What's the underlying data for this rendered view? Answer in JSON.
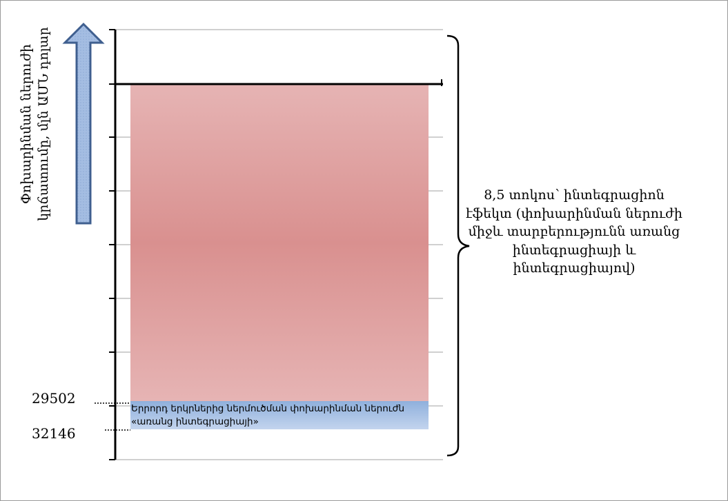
{
  "chart_data": {
    "type": "bar",
    "y_axis_label": "Փոխարինման ներուժի կրճատումը, մլն ԱՄՆ դոլար",
    "annotation": "8,5 տոկոս՝ ինտեգրացիոն էֆեկտ (փոխարինման ներուժի միջև տարբերությունն առանց ինտեգրացիայի և ինտեգրացիայով)",
    "values": [
      {
        "label": "29502",
        "value": 29502
      },
      {
        "label": "32146",
        "value": 32146
      }
    ],
    "band_label": "Երրորդ երկրներից ներմուծման փոխարինման ներուժն «առանց ինտեգրացիայի»",
    "effect_percent": 8.5,
    "colors": {
      "effect_fill": "#d9908f",
      "base_fill": "#a9c1e3",
      "arrow_fill": "#9fb8de",
      "arrow_stroke": "#3f5f8f"
    }
  }
}
